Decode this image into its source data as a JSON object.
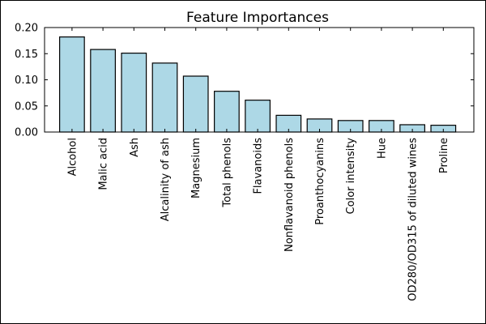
{
  "chart_data": {
    "type": "bar",
    "title": "Feature Importances",
    "xlabel": "",
    "ylabel": "",
    "ylim": [
      0,
      0.2
    ],
    "yticks": [
      0.0,
      0.05,
      0.1,
      0.15,
      0.2
    ],
    "ytick_labels": [
      "0.00",
      "0.05",
      "0.10",
      "0.15",
      "0.20"
    ],
    "categories": [
      "Alcohol",
      "Malic acid",
      "Ash",
      "Alcalinity of ash",
      "Magnesium",
      "Total phenols",
      "Flavanoids",
      "Nonflavanoid phenols",
      "Proanthocyanins",
      "Color intensity",
      "Hue",
      "OD280/OD315 of diluted wines",
      "Proline"
    ],
    "values": [
      0.182,
      0.158,
      0.151,
      0.132,
      0.107,
      0.078,
      0.061,
      0.032,
      0.025,
      0.022,
      0.022,
      0.014,
      0.013
    ],
    "bar_color": "#add8e6",
    "grid": false,
    "legend": "none"
  }
}
